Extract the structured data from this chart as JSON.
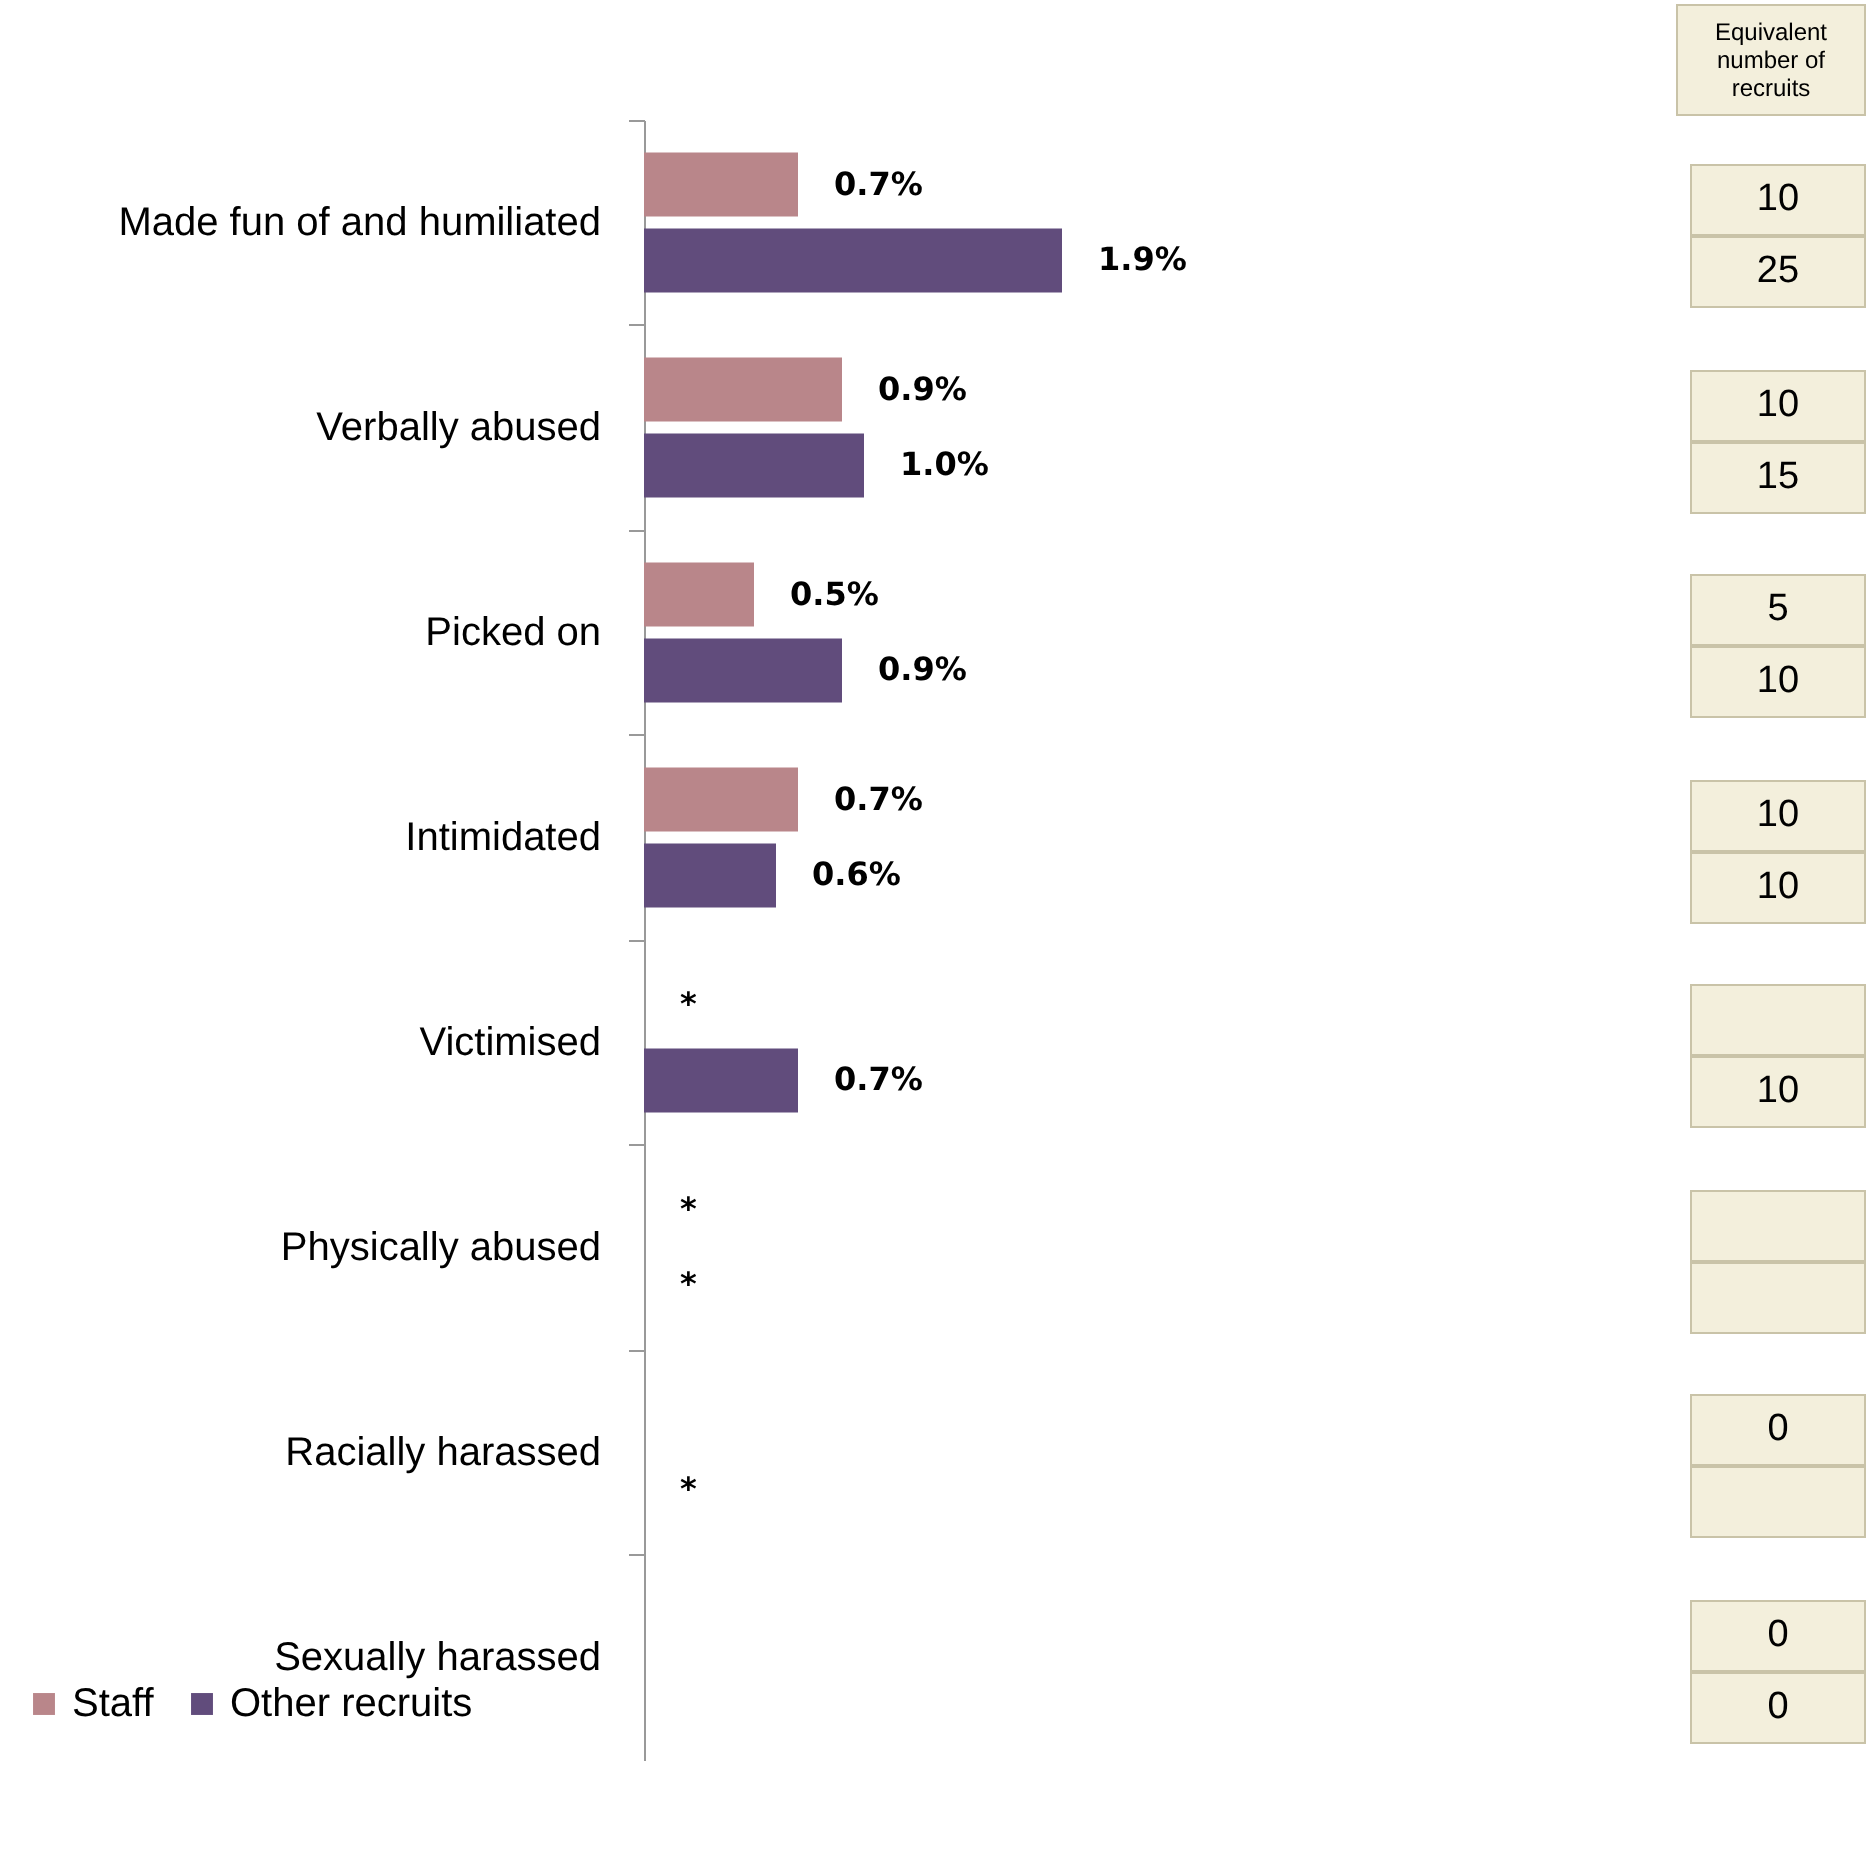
{
  "chart_data": {
    "type": "bar",
    "orientation": "horizontal",
    "categories": [
      "Made fun of and humiliated",
      "Verbally abused",
      "Picked on",
      "Intimidated",
      "Victimised",
      "Physically abused",
      "Racially harassed",
      "Sexually harassed"
    ],
    "series": [
      {
        "name": "Staff",
        "color": "#b9868a",
        "values": [
          0.7,
          0.9,
          0.5,
          0.7,
          null,
          null,
          0,
          0
        ],
        "value_labels": [
          "0.7%",
          "0.9%",
          "0.5%",
          "0.7%",
          "*",
          "*",
          null,
          null
        ]
      },
      {
        "name": "Other recruits",
        "color": "#614c7c",
        "values": [
          1.9,
          1.0,
          0.9,
          0.6,
          0.7,
          null,
          null,
          0
        ],
        "value_labels": [
          "1.9%",
          "1.0%",
          "0.9%",
          "0.6%",
          "0.7%",
          "*",
          "*",
          null
        ]
      }
    ],
    "legend": "bottom left",
    "annotations": [
      "Equivalent number of recruits",
      "10",
      "25",
      "10",
      "15",
      "5",
      "10",
      "10",
      "10",
      null,
      "10",
      null,
      null,
      "0",
      null,
      "0",
      "0"
    ]
  }
}
